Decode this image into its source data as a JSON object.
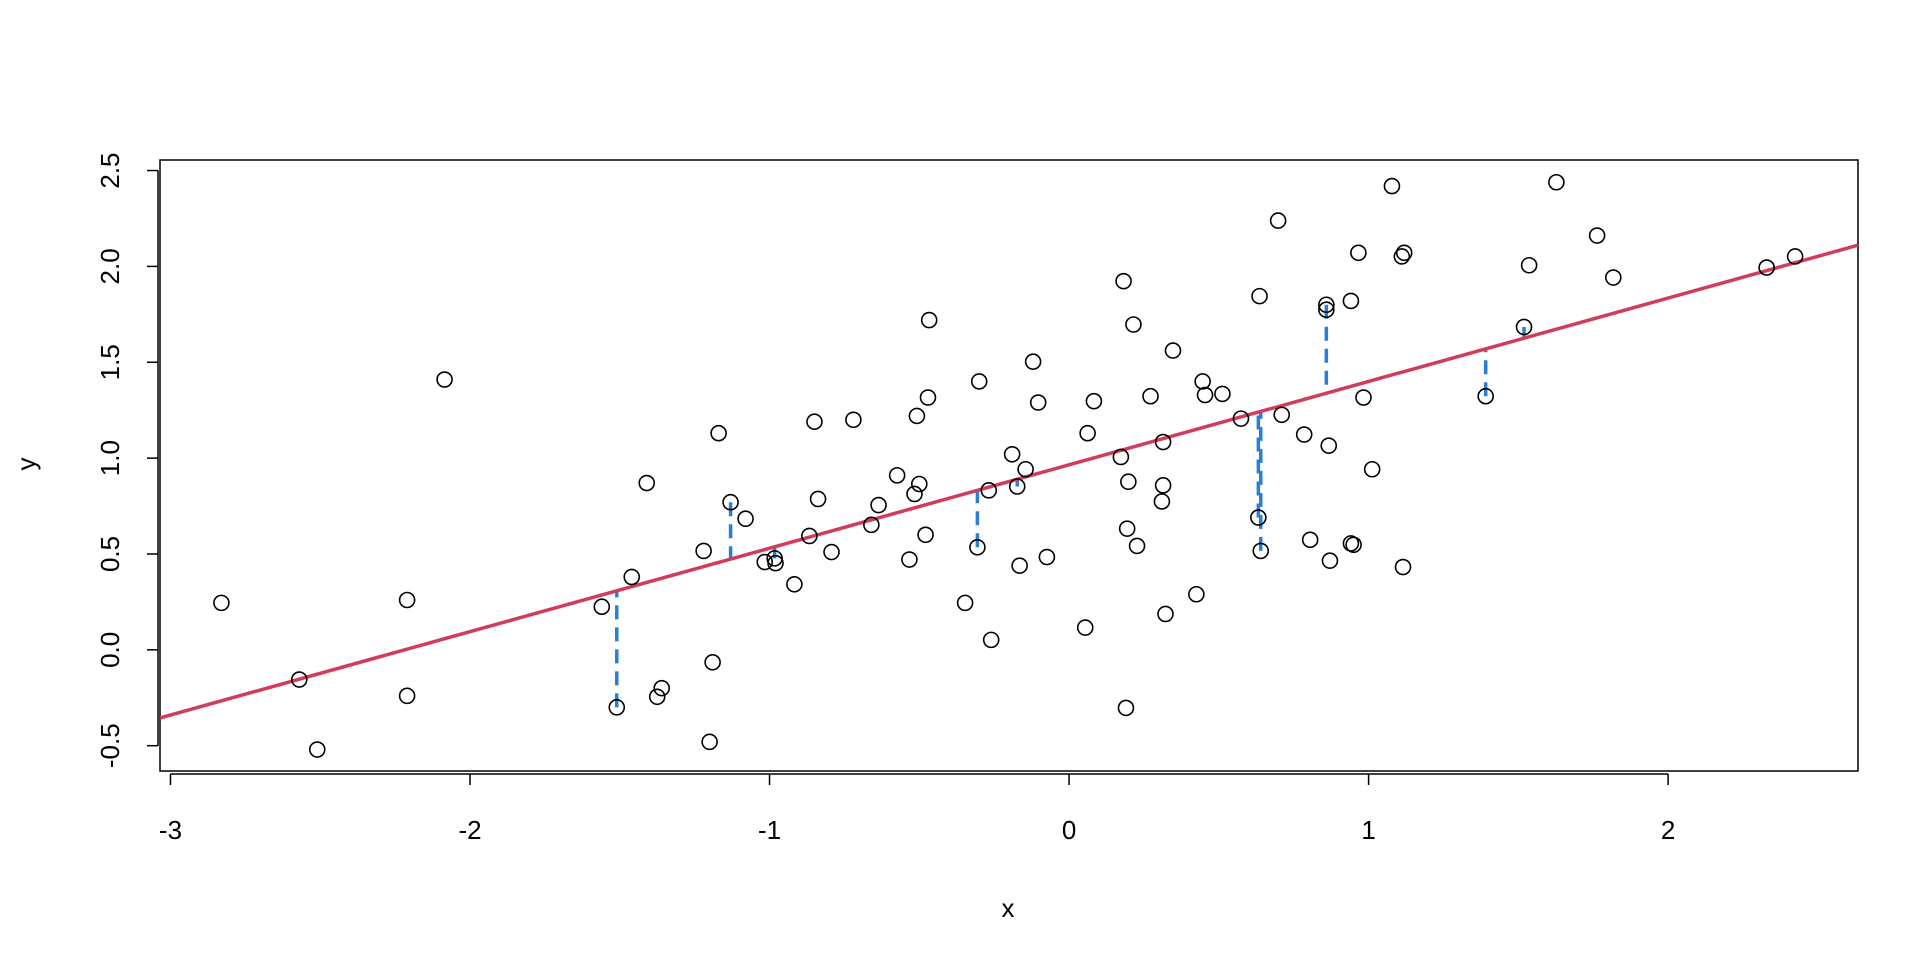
{
  "chart_data": {
    "type": "scatter",
    "x_label": "x",
    "y_label": "y",
    "xlim": [
      -3.035,
      2.634
    ],
    "ylim": [
      -0.632,
      2.555
    ],
    "xticks": [
      -3,
      -2,
      -1,
      0,
      1,
      2
    ],
    "yticks": [
      -0.5,
      {
        "value": 0,
        "label": "0.0"
      },
      0.5,
      {
        "value": 1,
        "label": "1.0"
      },
      1.5,
      {
        "value": 2,
        "label": "2.0"
      },
      2.5
    ],
    "point_color": "#000000",
    "x": [
      -2.83,
      -2.57,
      -2.51,
      -2.21,
      -2.21,
      -2.085,
      -1.56,
      -1.51,
      -1.46,
      -1.41,
      -1.375,
      -1.36,
      -1.22,
      -1.2,
      -1.19,
      -1.17,
      -1.13,
      -1.08,
      -1.016,
      -0.983,
      -0.98,
      -0.917,
      -0.867,
      -0.85,
      -0.838,
      -0.793,
      -0.72,
      -0.66,
      -0.636,
      -0.574,
      -0.533,
      -0.516,
      -0.508,
      -0.5,
      -0.479,
      -0.471,
      -0.467,
      -0.347,
      -0.306,
      -0.3,
      -0.268,
      -0.26,
      -0.19,
      -0.173,
      -0.165,
      -0.145,
      -0.12,
      -0.103,
      -0.074,
      0.054,
      0.062,
      0.083,
      0.173,
      0.182,
      0.19,
      0.194,
      0.198,
      0.215,
      0.227,
      0.272,
      0.31,
      0.314,
      0.314,
      0.322,
      0.347,
      0.425,
      0.446,
      0.454,
      0.512,
      0.574,
      0.632,
      0.636,
      0.64,
      0.698,
      0.71,
      0.785,
      0.805,
      0.859,
      0.859,
      0.867,
      0.871,
      0.941,
      0.941,
      0.95,
      0.966,
      0.983,
      1.012,
      1.078,
      1.111,
      1.119,
      1.115,
      1.391,
      1.519,
      1.536,
      1.627,
      1.763,
      1.817,
      2.329,
      2.424
    ],
    "values": [
      0.245,
      -0.155,
      -0.52,
      0.26,
      -0.24,
      1.41,
      0.225,
      -0.3,
      0.38,
      0.87,
      -0.245,
      -0.2,
      0.516,
      -0.48,
      -0.065,
      1.13,
      0.77,
      0.684,
      0.458,
      0.477,
      0.452,
      0.342,
      0.594,
      1.19,
      0.787,
      0.51,
      1.2,
      0.652,
      0.755,
      0.91,
      0.471,
      0.813,
      1.22,
      0.865,
      0.6,
      1.316,
      1.72,
      0.245,
      0.535,
      1.4,
      0.832,
      0.052,
      1.02,
      0.852,
      0.439,
      0.942,
      1.503,
      1.29,
      0.484,
      0.116,
      1.13,
      1.297,
      1.006,
      1.923,
      -0.303,
      0.632,
      0.877,
      1.697,
      0.542,
      1.323,
      0.774,
      1.084,
      0.858,
      0.187,
      1.561,
      0.29,
      1.4,
      1.329,
      1.335,
      1.206,
      0.69,
      1.845,
      0.516,
      2.239,
      1.226,
      1.123,
      0.574,
      1.8,
      1.774,
      1.065,
      0.465,
      1.82,
      0.555,
      0.548,
      2.071,
      1.316,
      0.942,
      2.419,
      2.052,
      2.071,
      0.432,
      1.323,
      1.684,
      2.006,
      2.439,
      2.161,
      1.942,
      1.994,
      2.052
    ],
    "fit": {
      "intercept": 0.965,
      "slope": 0.435,
      "color": "#d23c5a"
    },
    "residuals": {
      "color": "#2a7fd4",
      "points": [
        7,
        16,
        19,
        38,
        43,
        70,
        72,
        77,
        91,
        92
      ]
    }
  }
}
